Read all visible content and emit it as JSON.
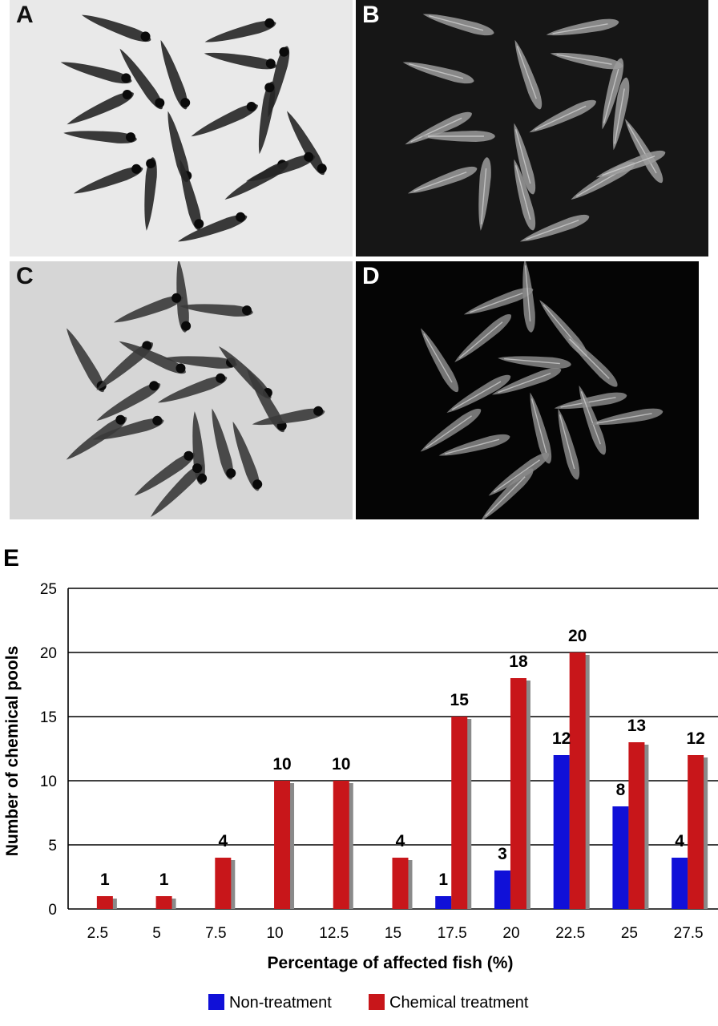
{
  "panels": [
    {
      "letter": "A",
      "bg": "#e9e9e9",
      "fish": "#262626",
      "kind": "brightfield"
    },
    {
      "letter": "B",
      "bg": "#161616",
      "fish": "#9c9c9c",
      "kind": "fluorescence"
    },
    {
      "letter": "C",
      "bg": "#d6d6d6",
      "fish": "#3a3a3a",
      "kind": "brightfield"
    },
    {
      "letter": "D",
      "bg": "#050505",
      "fish": "#8a8a8a",
      "kind": "fluorescence"
    }
  ],
  "panel_letter_colors": {
    "light": "#111111",
    "dark": "#ffffff"
  },
  "chart_data": {
    "type": "bar",
    "panel_label": "E",
    "xlabel": "Percentage of affected fish (%)",
    "ylabel": "Number of chemical pools",
    "categories": [
      "2.5",
      "5",
      "7.5",
      "10",
      "12.5",
      "15",
      "17.5",
      "20",
      "22.5",
      "25",
      "27.5"
    ],
    "ylim": [
      0,
      25
    ],
    "yticks": [
      "0",
      "5",
      "10",
      "15",
      "20",
      "25"
    ],
    "grid": true,
    "legend_position": "bottom",
    "series": [
      {
        "name": "Non-treatment",
        "color": "#1010d8",
        "values": [
          0,
          0,
          0,
          0,
          0,
          0,
          1,
          3,
          12,
          8,
          4
        ],
        "labels": [
          "",
          "",
          "",
          "",
          "",
          "",
          "1",
          "3",
          "12",
          "8",
          "4"
        ]
      },
      {
        "name": "Chemical treatment",
        "color": "#c8161a",
        "values": [
          1,
          1,
          4,
          10,
          10,
          4,
          15,
          18,
          20,
          13,
          12
        ],
        "labels": [
          "1",
          "1",
          "4",
          "10",
          "10",
          "4",
          "15",
          "18",
          "20",
          "13",
          "12"
        ]
      }
    ]
  }
}
